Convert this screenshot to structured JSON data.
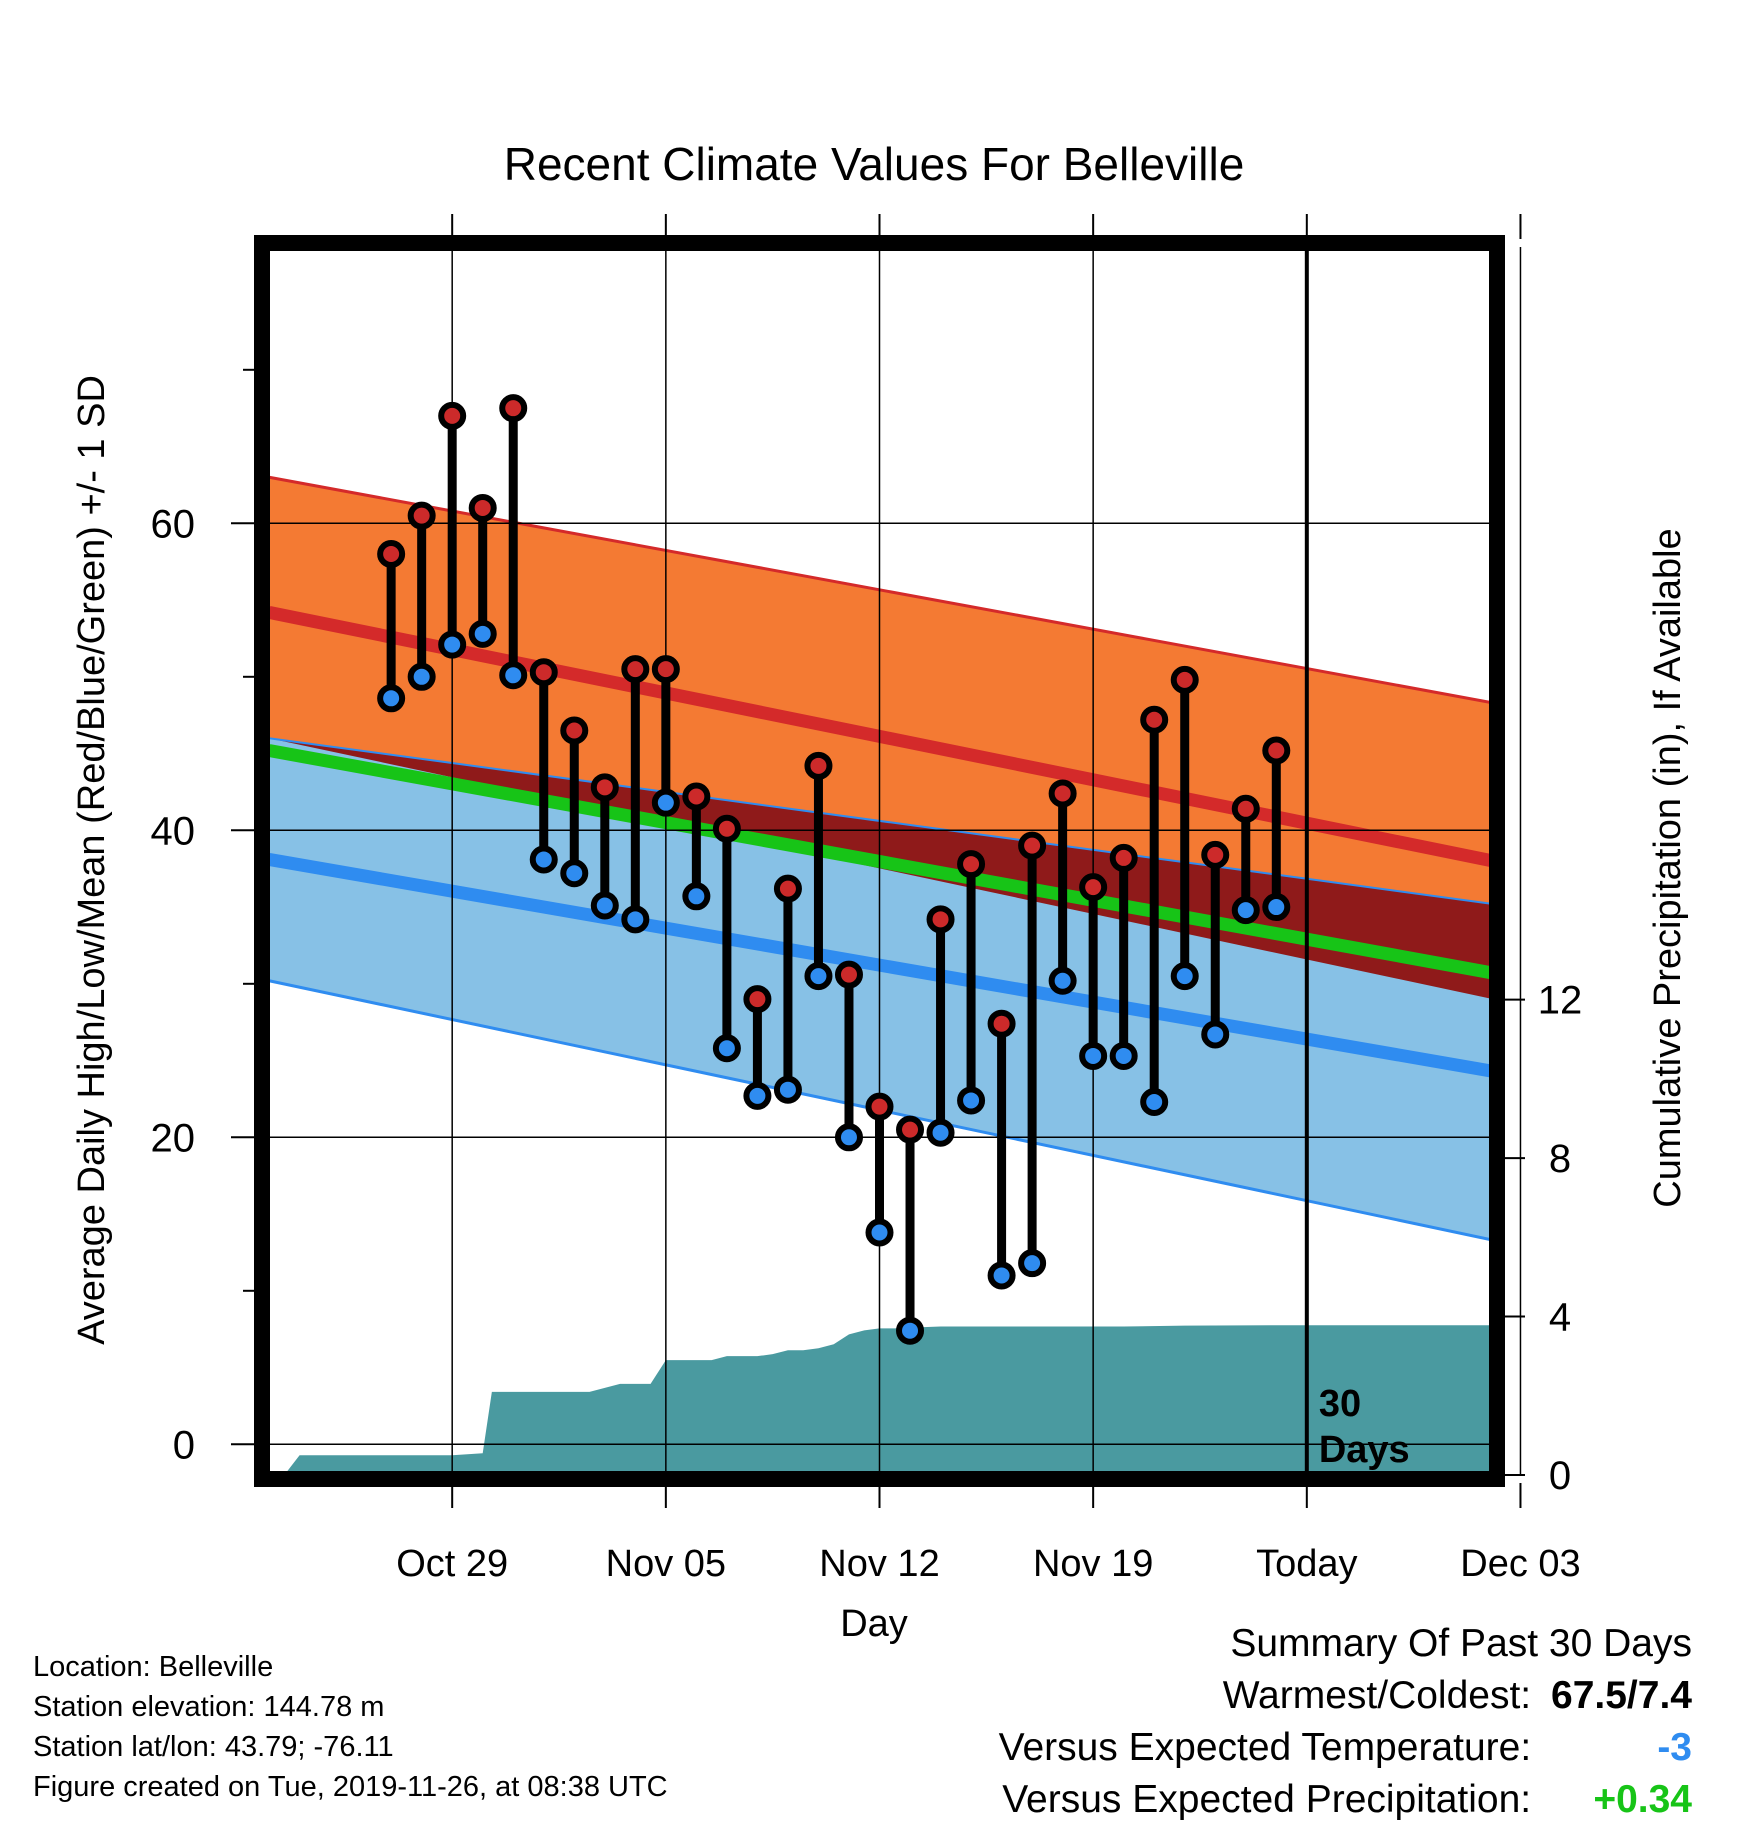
{
  "chart_data": {
    "type": "line",
    "title": "Recent Climate Values For Belleville",
    "xlabel": "Day",
    "ylabel_left": "Average Daily High/Low/Mean (Red/Blue/Green) +/- 1 SD",
    "ylabel_right": "Cumulative Precipitation (in), If Available",
    "x_range_days": [
      -3.1,
      37.1
    ],
    "ylim_left": [
      -2,
      78
    ],
    "ylim_right": [
      0,
      31
    ],
    "x_ticks": [
      {
        "day": 3,
        "label": "Oct 29"
      },
      {
        "day": 10,
        "label": "Nov 05"
      },
      {
        "day": 17,
        "label": "Nov 12"
      },
      {
        "day": 24,
        "label": "Nov 19"
      },
      {
        "day": 31,
        "label": "Today"
      },
      {
        "day": 38,
        "label": "Dec 03"
      }
    ],
    "y_ticks_left": [
      0,
      20,
      40,
      60
    ],
    "y_ticks_right": [
      0,
      4,
      8,
      12
    ],
    "today_marker_day": 31,
    "today_marker_text": [
      "30",
      "Days"
    ],
    "grid": true,
    "colors": {
      "high_band": "#f47a33",
      "high_line": "#d42a2a",
      "low_band": "#87c1e6",
      "low_line": "#2f8cf0",
      "overlap_band": "#8f1a1a",
      "mean_line": "#17c417",
      "precip": "#4a9aa0",
      "high_dot": "#cc2a2a",
      "low_dot": "#2f8cf0"
    },
    "normals": {
      "days": [
        -3,
        37.1
      ],
      "high_mean": [
        54.2,
        38.0
      ],
      "high_upper": [
        63.0,
        48.3
      ],
      "high_lower": [
        46.0,
        29.0
      ],
      "low_mean": [
        38.1,
        24.3
      ],
      "low_upper": [
        46.0,
        35.2
      ],
      "low_lower": [
        30.2,
        13.3
      ],
      "mean": [
        45.2,
        30.7
      ]
    },
    "observations": {
      "days": [
        1,
        2,
        3,
        4,
        5,
        6,
        7,
        8,
        9,
        10,
        11,
        12,
        13,
        14,
        15,
        16,
        17,
        18,
        19,
        20,
        21,
        22,
        23,
        24,
        25,
        26,
        27,
        28,
        29,
        30
      ],
      "highs": [
        58.0,
        60.5,
        67.0,
        61.0,
        67.5,
        50.3,
        46.5,
        42.8,
        50.5,
        50.5,
        42.2,
        40.1,
        29.0,
        36.2,
        44.2,
        30.6,
        22.0,
        20.5,
        34.2,
        37.8,
        27.4,
        39.0,
        42.4,
        36.3,
        38.2,
        47.2,
        49.8,
        38.4,
        41.4,
        45.2
      ],
      "lows": [
        48.6,
        50.0,
        52.1,
        52.8,
        50.1,
        38.1,
        37.2,
        35.1,
        34.2,
        41.8,
        35.7,
        25.8,
        22.7,
        23.1,
        30.5,
        20.0,
        13.8,
        7.4,
        20.3,
        22.4,
        11.0,
        11.8,
        30.2,
        25.3,
        25.3,
        22.3,
        30.5,
        26.7,
        34.8,
        35.0
      ]
    },
    "precipitation": {
      "days": [
        -2.5,
        -2.0,
        0.7,
        1.0,
        1.7,
        2.3,
        2.5,
        3.0,
        4.0,
        4.3,
        5.0,
        5.5,
        6.0,
        6.5,
        7.0,
        7.5,
        8.0,
        8.5,
        9.0,
        9.5,
        10.0,
        10.5,
        11.0,
        11.5,
        12.0,
        12.5,
        13.0,
        13.5,
        14.0,
        14.5,
        15.0,
        15.5,
        16.0,
        16.5,
        17.0,
        17.5,
        18.0,
        19.0,
        20.0,
        22.0,
        25.0,
        27.0,
        30.0,
        31.0,
        37.1
      ],
      "values": [
        0,
        0.5,
        0.5,
        0.5,
        0.5,
        0.5,
        0.5,
        0.5,
        0.55,
        2.1,
        2.1,
        2.1,
        2.1,
        2.1,
        2.1,
        2.1,
        2.2,
        2.3,
        2.3,
        2.3,
        2.9,
        2.9,
        2.9,
        2.9,
        3.0,
        3.0,
        3.0,
        3.05,
        3.15,
        3.15,
        3.2,
        3.3,
        3.55,
        3.65,
        3.7,
        3.7,
        3.72,
        3.75,
        3.75,
        3.75,
        3.75,
        3.77,
        3.78,
        3.78,
        3.78
      ]
    }
  },
  "info": {
    "location": "Location: Belleville",
    "elevation": "Station elevation: 144.78 m",
    "latlon": "Station lat/lon: 43.79; -76.11",
    "created": "Figure created on Tue, 2019-11-26, at 08:38 UTC"
  },
  "summary": {
    "heading": "Summary Of Past 30 Days",
    "warmest_coldest_label": "Warmest/Coldest:",
    "warmest_coldest_value": "67.5/7.4",
    "temp_label": "Versus Expected Temperature:",
    "temp_value": "-3",
    "temp_color": "#2f8cf0",
    "precip_label": "Versus Expected Precipitation:",
    "precip_value": "+0.34",
    "precip_color": "#17c417"
  }
}
